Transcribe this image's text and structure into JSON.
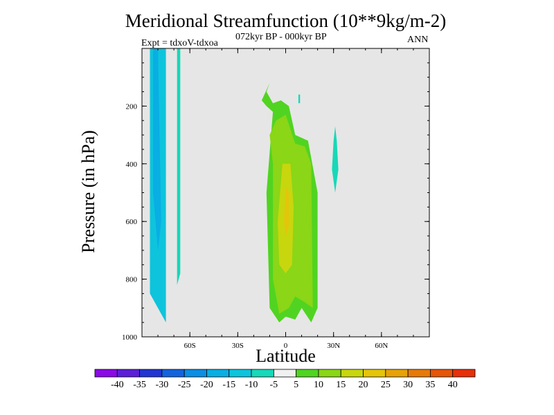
{
  "header": {
    "title": "Meridional Streamfunction (10**9kg/m-2)",
    "subtitle": "072kyr BP - 000kyr BP",
    "expt": "Expt = tdxoV-tdxoa",
    "season": "ANN"
  },
  "chart_data": {
    "type": "heatmap",
    "title": "Meridional Streamfunction (10**9kg/m-2)",
    "subtitle": "072kyr BP - 000kyr BP",
    "xlabel": "Latitude",
    "ylabel": "Pressure (in hPa)",
    "xlim": [
      -90,
      90
    ],
    "ylim": [
      0,
      1000
    ],
    "y_inverted": true,
    "x_ticks": [
      {
        "value": -60,
        "label": "60S"
      },
      {
        "value": -30,
        "label": "30S"
      },
      {
        "value": 0,
        "label": "0"
      },
      {
        "value": 30,
        "label": "30N"
      },
      {
        "value": 60,
        "label": "60N"
      }
    ],
    "y_ticks": [
      {
        "value": 200,
        "label": "200"
      },
      {
        "value": 400,
        "label": "400"
      },
      {
        "value": 600,
        "label": "600"
      },
      {
        "value": 800,
        "label": "800"
      },
      {
        "value": 1000,
        "label": "1000"
      }
    ],
    "background_color": "#e6e6e6",
    "colorbar": {
      "labels": [
        "-40",
        "-35",
        "-30",
        "-25",
        "-20",
        "-15",
        "-10",
        "-5",
        "5",
        "10",
        "15",
        "20",
        "25",
        "30",
        "35",
        "40"
      ],
      "colors": [
        "#8a0ae6",
        "#5b1fd6",
        "#2434d2",
        "#1463dd",
        "#0c8ee2",
        "#09aee3",
        "#0dc4dc",
        "#17d8b8",
        "#f0f0f0",
        "#50d421",
        "#8ad617",
        "#c8d60e",
        "#e4c50a",
        "#e6a208",
        "#e67a06",
        "#e65508",
        "#e6300a"
      ]
    },
    "regions": [
      {
        "band": "-15 to -10",
        "color": "#0dc4dc",
        "points": [
          [
            -85,
            0
          ],
          [
            -75,
            0
          ],
          [
            -75,
            950
          ],
          [
            -85,
            850
          ]
        ]
      },
      {
        "band": "-10 to -5",
        "color": "#17d8b8",
        "points": [
          [
            -68,
            0
          ],
          [
            -66,
            0
          ],
          [
            -66,
            780
          ],
          [
            -68,
            820
          ]
        ]
      },
      {
        "band": "-20 to -15",
        "color": "#09aee3",
        "points": [
          [
            -83,
            0
          ],
          [
            -80,
            0
          ],
          [
            -78,
            600
          ],
          [
            -80,
            700
          ],
          [
            -83,
            500
          ]
        ]
      },
      {
        "band": "5 to 10",
        "color": "#50d421",
        "points": [
          [
            -12,
            150
          ],
          [
            -8,
            190
          ],
          [
            -3,
            180
          ],
          [
            2,
            200
          ],
          [
            6,
            300
          ],
          [
            14,
            320
          ],
          [
            20,
            500
          ],
          [
            20,
            900
          ],
          [
            16,
            950
          ],
          [
            10,
            900
          ],
          [
            6,
            940
          ],
          [
            0,
            930
          ],
          [
            -4,
            950
          ],
          [
            -10,
            900
          ],
          [
            -12,
            500
          ],
          [
            -8,
            220
          ],
          [
            -12,
            200
          ],
          [
            -15,
            180
          ],
          [
            -10,
            120
          ]
        ]
      },
      {
        "band": "10 to 15",
        "color": "#8ad617",
        "points": [
          [
            -6,
            250
          ],
          [
            0,
            230
          ],
          [
            6,
            330
          ],
          [
            12,
            340
          ],
          [
            16,
            400
          ],
          [
            17,
            900
          ],
          [
            12,
            880
          ],
          [
            6,
            860
          ],
          [
            2,
            900
          ],
          [
            -4,
            920
          ],
          [
            -8,
            800
          ],
          [
            -8,
            400
          ],
          [
            -10,
            300
          ]
        ]
      },
      {
        "band": "15 to 20",
        "color": "#c8d60e",
        "points": [
          [
            -2,
            400
          ],
          [
            3,
            400
          ],
          [
            5,
            550
          ],
          [
            4,
            750
          ],
          [
            0,
            780
          ],
          [
            -4,
            750
          ],
          [
            -5,
            600
          ]
        ]
      },
      {
        "band": "20 to 25",
        "color": "#e4c50a",
        "points": [
          [
            0,
            480
          ],
          [
            2,
            500
          ],
          [
            2,
            620
          ],
          [
            0,
            650
          ],
          [
            -1,
            600
          ]
        ]
      },
      {
        "band": "-10 to -5",
        "color": "#17d8b8",
        "points": [
          [
            8,
            160
          ],
          [
            9,
            160
          ],
          [
            9,
            190
          ],
          [
            8,
            190
          ]
        ]
      },
      {
        "band": "-10 to -5",
        "color": "#17d8b8",
        "points": [
          [
            31,
            270
          ],
          [
            32,
            320
          ],
          [
            33,
            420
          ],
          [
            31,
            500
          ],
          [
            29,
            420
          ],
          [
            30,
            320
          ]
        ]
      }
    ]
  }
}
